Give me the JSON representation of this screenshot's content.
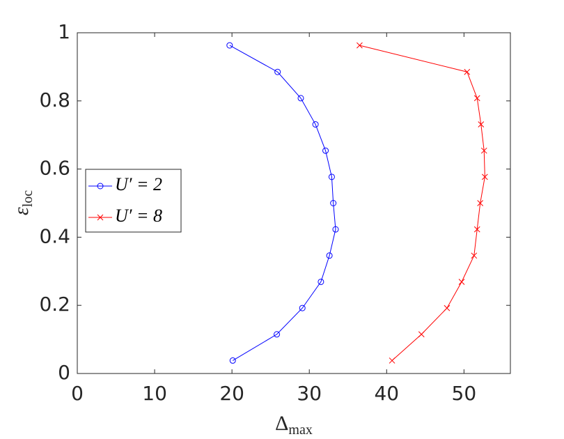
{
  "chart_data": {
    "type": "line",
    "xlabel": {
      "symbol": "Δ",
      "subscript": "max"
    },
    "ylabel": {
      "symbol": "ε",
      "subscript": "loc"
    },
    "y": [
      0.963,
      0.885,
      0.808,
      0.731,
      0.654,
      0.577,
      0.5,
      0.423,
      0.346,
      0.269,
      0.192,
      0.115,
      0.038
    ],
    "series": [
      {
        "name": "U′ = 2",
        "color": "#0000ff",
        "marker": "circle",
        "x": [
          19.7,
          25.9,
          28.9,
          30.8,
          32.1,
          32.9,
          33.1,
          33.4,
          32.6,
          31.5,
          29.1,
          25.8,
          20.1
        ]
      },
      {
        "name": "U′ = 8",
        "color": "#ff0000",
        "marker": "cross",
        "x": [
          36.5,
          50.4,
          51.7,
          52.2,
          52.6,
          52.7,
          52.1,
          51.7,
          51.3,
          49.7,
          47.8,
          44.5,
          40.7
        ]
      }
    ],
    "xlim": [
      0,
      56
    ],
    "ylim": [
      0,
      1
    ],
    "xticks": [
      0,
      10,
      20,
      30,
      40,
      50
    ],
    "yticks": [
      0,
      0.2,
      0.4,
      0.6,
      0.8,
      1
    ],
    "legend": "left"
  }
}
